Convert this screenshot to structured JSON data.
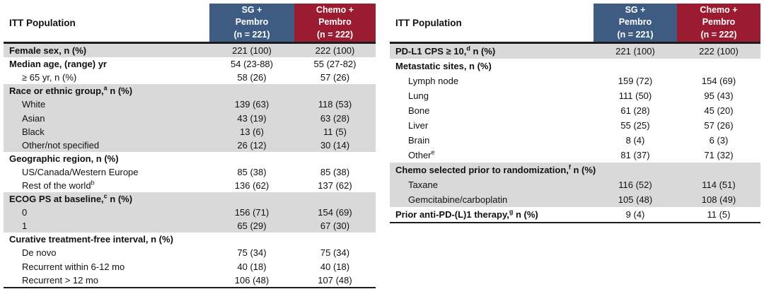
{
  "colors": {
    "header-blue": "#3E5C82",
    "header-red": "#9B1B30",
    "row-shade": "#D9D9D9",
    "border-dark": "#1C1C1C"
  },
  "chart_data": {
    "type": "table",
    "note": "Baseline characteristics, two side-by-side tables, ITT population"
  },
  "tables": [
    {
      "header": {
        "label": "ITT Population",
        "col1": "SG +\nPembro\n(n = 221)",
        "col2": "Chemo +\nPembro\n(n = 222)"
      },
      "rows": [
        {
          "label": "Female sex, n (%)",
          "bold": true,
          "shaded": true,
          "v1": "221 (100)",
          "v2": "222 (100)"
        },
        {
          "label": "Median age, (range) yr",
          "bold": true,
          "v1": "54 (23-88)",
          "v2": "55 (27-82)"
        },
        {
          "label": "≥ 65 yr, n (%)",
          "indent": true,
          "v1": "58 (26)",
          "v2": "57 (26)"
        },
        {
          "label": [
            "Race or ethnic group,",
            {
              "sup": "a"
            },
            " n (%)"
          ],
          "bold": true,
          "shaded": true,
          "v1": "",
          "v2": ""
        },
        {
          "label": "White",
          "indent": true,
          "shaded": true,
          "v1": "139 (63)",
          "v2": "118 (53)"
        },
        {
          "label": "Asian",
          "indent": true,
          "shaded": true,
          "v1": "43 (19)",
          "v2": "63 (28)"
        },
        {
          "label": "Black",
          "indent": true,
          "shaded": true,
          "v1": "13 (6)",
          "v2": "11 (5)"
        },
        {
          "label": "Other/not specified",
          "indent": true,
          "shaded": true,
          "v1": "26 (12)",
          "v2": "30 (14)"
        },
        {
          "label": "Geographic region, n (%)",
          "bold": true,
          "v1": "",
          "v2": ""
        },
        {
          "label": "US/Canada/Western Europe",
          "indent": true,
          "v1": "85 (38)",
          "v2": "85 (38)"
        },
        {
          "label": [
            "Rest of the world",
            {
              "sup": "b"
            }
          ],
          "indent": true,
          "v1": "136 (62)",
          "v2": "137 (62)"
        },
        {
          "label": [
            "ECOG PS at baseline,",
            {
              "sup": "c"
            },
            " n (%)"
          ],
          "bold": true,
          "shaded": true,
          "v1": "",
          "v2": ""
        },
        {
          "label": "0",
          "indent": true,
          "shaded": true,
          "v1": "156 (71)",
          "v2": "154 (69)"
        },
        {
          "label": "1",
          "indent": true,
          "shaded": true,
          "v1": "65 (29)",
          "v2": "67 (30)"
        },
        {
          "label": "Curative treatment-free interval, n (%)",
          "bold": true,
          "v1": "",
          "v2": ""
        },
        {
          "label": "De novo",
          "indent": true,
          "v1": "75 (34)",
          "v2": "75 (34)"
        },
        {
          "label": "Recurrent within 6-12 mo",
          "indent": true,
          "v1": "40 (18)",
          "v2": "40 (18)"
        },
        {
          "label": "Recurrent > 12 mo",
          "indent": true,
          "v1": "106 (48)",
          "v2": "107 (48)"
        }
      ]
    },
    {
      "header": {
        "label": "ITT Population",
        "col1": "SG +\nPembro\n(n = 221)",
        "col2": "Chemo +\nPembro\n(n = 222)"
      },
      "rows": [
        {
          "label": [
            "PD-L1 CPS ≥ 10,",
            {
              "sup": "d"
            },
            " n (%)"
          ],
          "bold": true,
          "shaded": true,
          "v1": "221 (100)",
          "v2": "222 (100)"
        },
        {
          "label": "Metastatic sites, n (%)",
          "bold": true,
          "v1": "",
          "v2": ""
        },
        {
          "label": "Lymph node",
          "indent": true,
          "v1": "159 (72)",
          "v2": "154 (69)"
        },
        {
          "label": "Lung",
          "indent": true,
          "v1": "111 (50)",
          "v2": "95 (43)"
        },
        {
          "label": "Bone",
          "indent": true,
          "v1": "61 (28)",
          "v2": "45 (20)"
        },
        {
          "label": "Liver",
          "indent": true,
          "v1": "55 (25)",
          "v2": "57 (26)"
        },
        {
          "label": "Brain",
          "indent": true,
          "v1": "8 (4)",
          "v2": "6 (3)"
        },
        {
          "label": [
            "Other",
            {
              "sup": "e"
            }
          ],
          "indent": true,
          "v1": "81 (37)",
          "v2": "71 (32)"
        },
        {
          "label": [
            "Chemo selected prior to randomization,",
            {
              "sup": "f"
            },
            " n (%)"
          ],
          "bold": true,
          "shaded": true,
          "v1": "",
          "v2": ""
        },
        {
          "label": "Taxane",
          "indent": true,
          "shaded": true,
          "v1": "116 (52)",
          "v2": "114 (51)"
        },
        {
          "label": "Gemcitabine/carboplatin",
          "indent": true,
          "shaded": true,
          "v1": "105 (48)",
          "v2": "108 (49)"
        },
        {
          "label": [
            "Prior anti-PD-(L)1 therapy,",
            {
              "sup": "g"
            },
            " n (%)"
          ],
          "bold": true,
          "v1": "9 (4)",
          "v2": "11 (5)"
        }
      ]
    }
  ]
}
